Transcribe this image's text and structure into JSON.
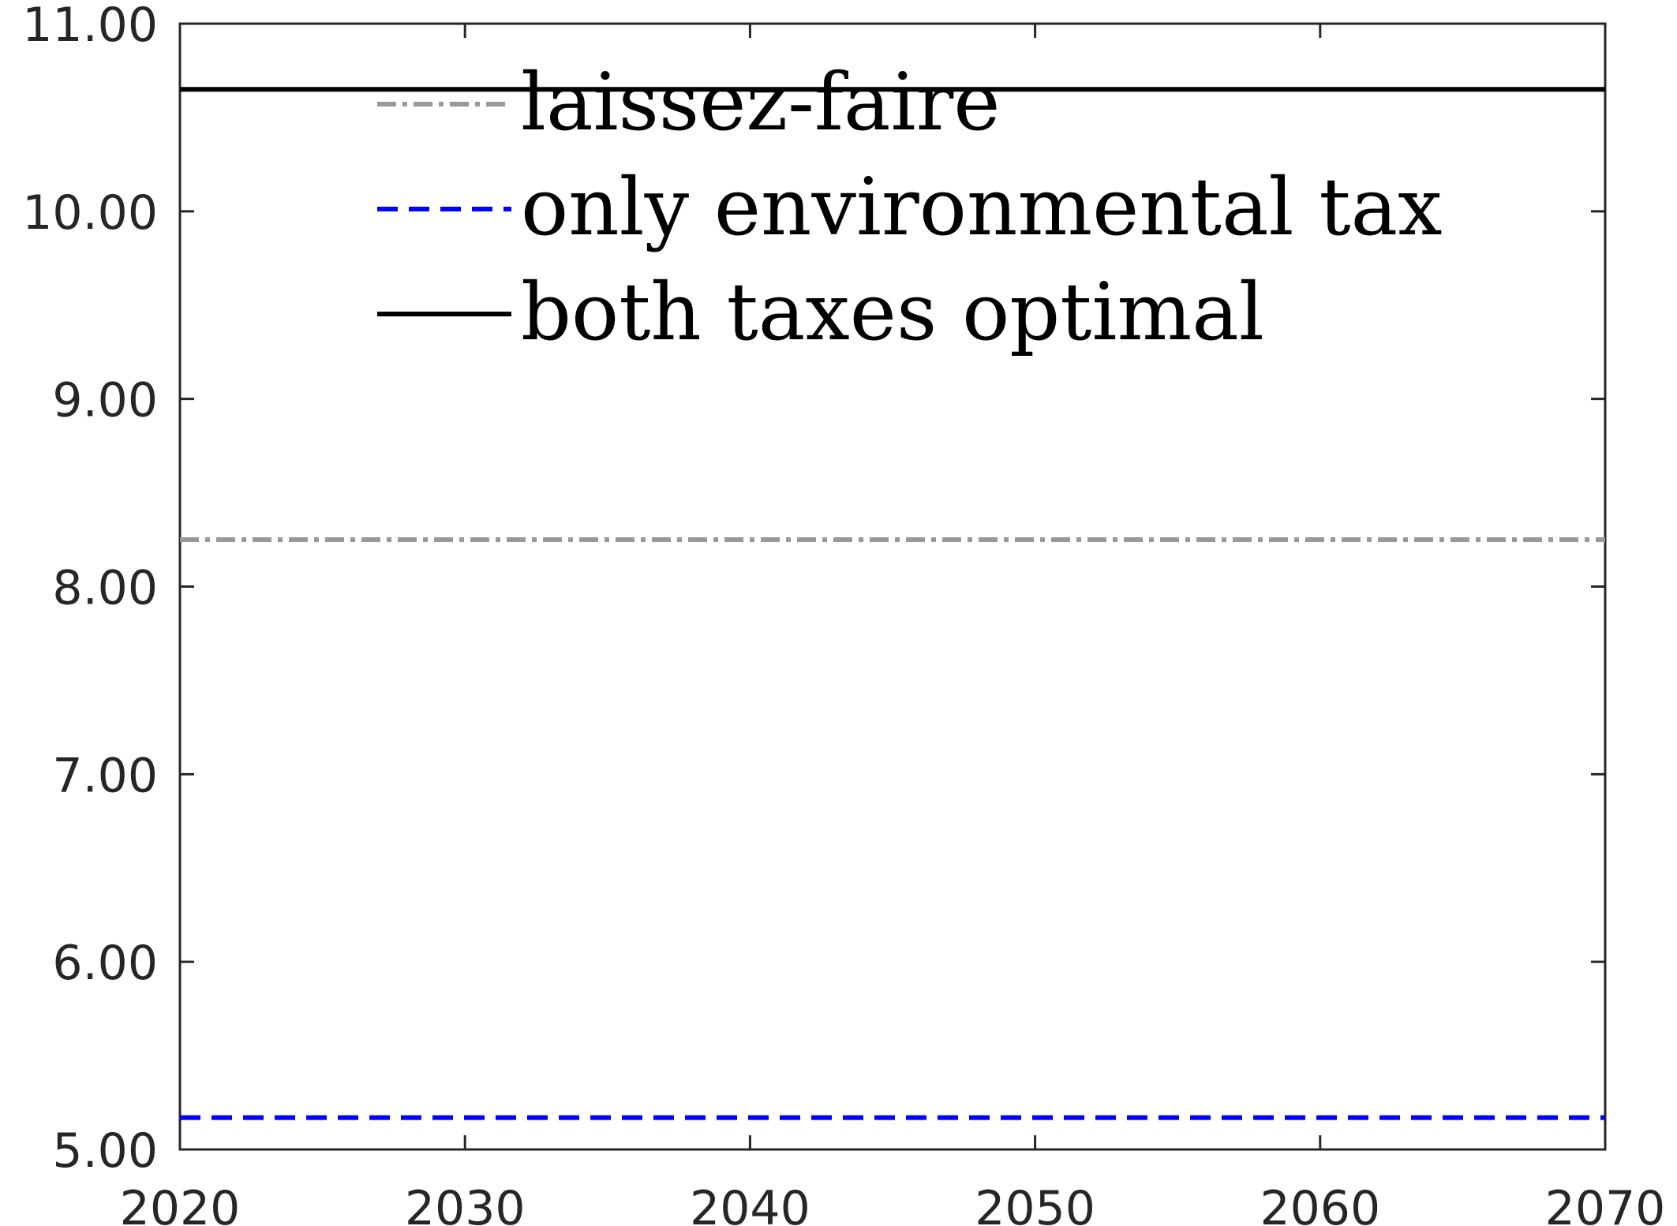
{
  "chart_data": {
    "type": "line",
    "title": "",
    "xlabel": "",
    "ylabel": "",
    "xlim": [
      2020,
      2070
    ],
    "ylim": [
      5.0,
      11.0
    ],
    "x_ticks": [
      2020,
      2030,
      2040,
      2050,
      2060,
      2070
    ],
    "x_tick_labels": [
      "2020",
      "2030",
      "2040",
      "2050",
      "2060",
      "2070"
    ],
    "y_ticks": [
      5.0,
      6.0,
      7.0,
      8.0,
      9.0,
      10.0,
      11.0
    ],
    "y_tick_labels": [
      "5.00",
      "6.00",
      "7.00",
      "8.00",
      "9.00",
      "10.00",
      "11.00"
    ],
    "grid": false,
    "legend_position": "top-left",
    "series": [
      {
        "name": "laissez-faire",
        "x": [
          2020,
          2070
        ],
        "values": [
          8.25,
          8.25
        ],
        "color": "#999999",
        "style": "dash-dot"
      },
      {
        "name": "only environmental tax",
        "x": [
          2020,
          2070
        ],
        "values": [
          5.17,
          5.17
        ],
        "color": "#0000ff",
        "style": "dashed"
      },
      {
        "name": "both taxes optimal",
        "x": [
          2020,
          2070
        ],
        "values": [
          10.65,
          10.65
        ],
        "color": "#000000",
        "style": "solid"
      }
    ]
  }
}
